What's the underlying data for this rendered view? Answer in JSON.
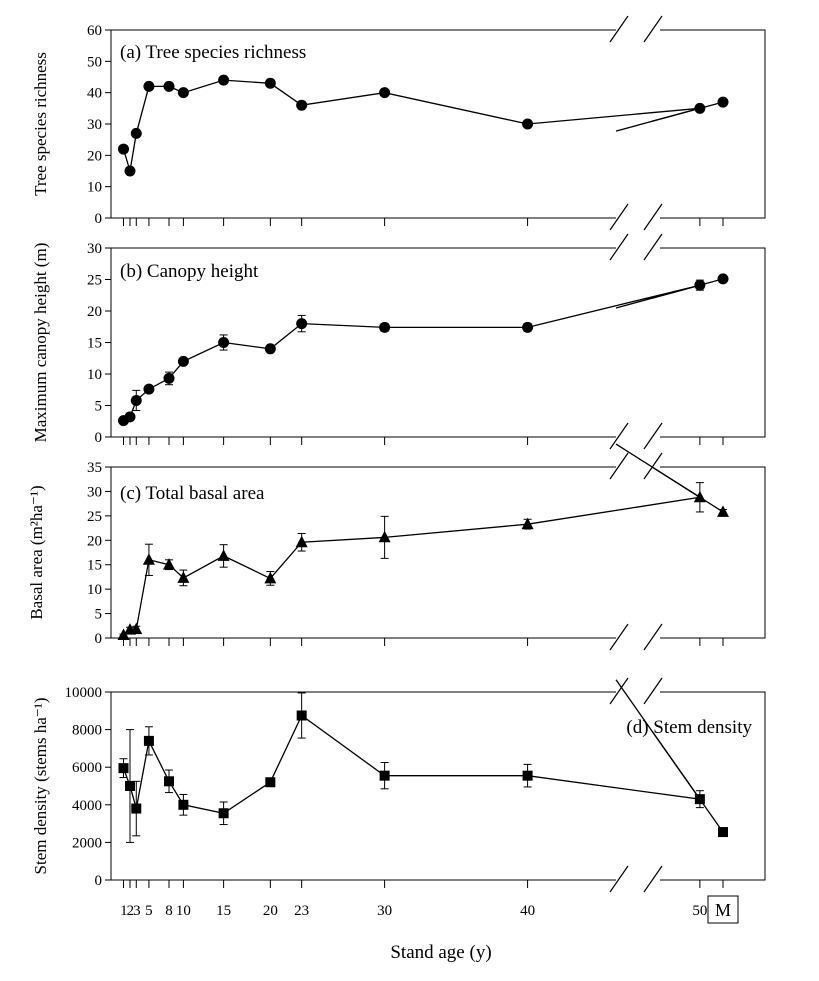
{
  "chart_data": [
    {
      "type": "line",
      "panel": "a",
      "title": "(a) Tree species richness",
      "ylabel": "Tree species richness",
      "ylim": [
        0,
        60
      ],
      "yticks": [
        0,
        10,
        20,
        30,
        40,
        50,
        60
      ],
      "marker": "circle",
      "error_bars": false,
      "x": [
        1,
        2,
        3,
        5,
        8,
        10,
        15,
        20,
        23,
        30,
        40,
        50,
        "M"
      ],
      "series": [
        {
          "values": [
            22,
            15,
            27,
            42,
            42,
            40,
            44,
            43,
            36,
            40,
            30,
            35,
            37
          ]
        }
      ]
    },
    {
      "type": "line",
      "panel": "b",
      "title": "(b) Canopy height",
      "ylabel": "Maximum canopy height (m)",
      "ylim": [
        0,
        30
      ],
      "yticks": [
        0,
        5,
        10,
        15,
        20,
        25,
        30
      ],
      "marker": "circle",
      "error_bars": true,
      "x": [
        1,
        2,
        3,
        5,
        8,
        10,
        15,
        20,
        23,
        30,
        40,
        50,
        "M"
      ],
      "series": [
        {
          "values": [
            2.6,
            3.2,
            5.8,
            7.6,
            9.3,
            12.0,
            15.0,
            14.0,
            18.0,
            17.4,
            17.4,
            24.1,
            25.1
          ],
          "errors": [
            0.4,
            0.5,
            1.6,
            0.4,
            1.0,
            0.5,
            1.2,
            0.4,
            1.3,
            0.6,
            0.6,
            0.8,
            0.4
          ]
        }
      ]
    },
    {
      "type": "line",
      "panel": "c",
      "title": "(c) Total basal area",
      "ylabel": "Basal area (m²ha⁻¹)",
      "ylim": [
        0,
        35
      ],
      "yticks": [
        0,
        5,
        10,
        15,
        20,
        25,
        30,
        35
      ],
      "marker": "triangle",
      "error_bars": true,
      "x": [
        1,
        2,
        3,
        5,
        8,
        10,
        15,
        20,
        23,
        30,
        40,
        50,
        "M"
      ],
      "series": [
        {
          "values": [
            0.6,
            1.7,
            1.8,
            16.0,
            15.0,
            12.3,
            16.8,
            12.2,
            19.6,
            20.6,
            23.3,
            28.8,
            25.8
          ],
          "errors": [
            0.2,
            0.5,
            0.6,
            3.2,
            1.0,
            1.6,
            2.3,
            1.4,
            1.8,
            4.3,
            1.0,
            3.0,
            0.5
          ]
        }
      ]
    },
    {
      "type": "line",
      "panel": "d",
      "title": "(d) Stem density",
      "ylabel": "Stem density (stems ha⁻¹)",
      "ylim": [
        0,
        10000
      ],
      "yticks": [
        0,
        2000,
        4000,
        6000,
        8000,
        10000
      ],
      "marker": "square",
      "error_bars": true,
      "x": [
        1,
        2,
        3,
        5,
        8,
        10,
        15,
        20,
        23,
        30,
        40,
        50,
        "M"
      ],
      "series": [
        {
          "values": [
            5950,
            5000,
            3800,
            7400,
            5250,
            4000,
            3550,
            5200,
            8750,
            5550,
            5550,
            4300,
            2550
          ],
          "errors": [
            500,
            3000,
            1450,
            750,
            600,
            550,
            600,
            100,
            1200,
            700,
            600,
            450,
            100
          ]
        }
      ]
    }
  ],
  "x_axis": {
    "label": "Stand age (y)",
    "tick_groups": [
      {
        "text": "123",
        "ages": [
          1,
          2,
          3
        ]
      },
      {
        "text": "5",
        "ages": [
          5
        ]
      },
      {
        "text": "8",
        "ages": [
          8
        ]
      },
      {
        "text": "10",
        "ages": [
          10
        ]
      },
      {
        "text": "15",
        "ages": [
          15
        ]
      },
      {
        "text": "20",
        "ages": [
          20
        ]
      },
      {
        "text": "23",
        "ages": [
          23
        ]
      },
      {
        "text": "30",
        "ages": [
          30
        ]
      },
      {
        "text": "40",
        "ages": [
          40
        ]
      },
      {
        "text": "50",
        "ages": [
          50
        ]
      }
    ],
    "mature_label": "M"
  }
}
